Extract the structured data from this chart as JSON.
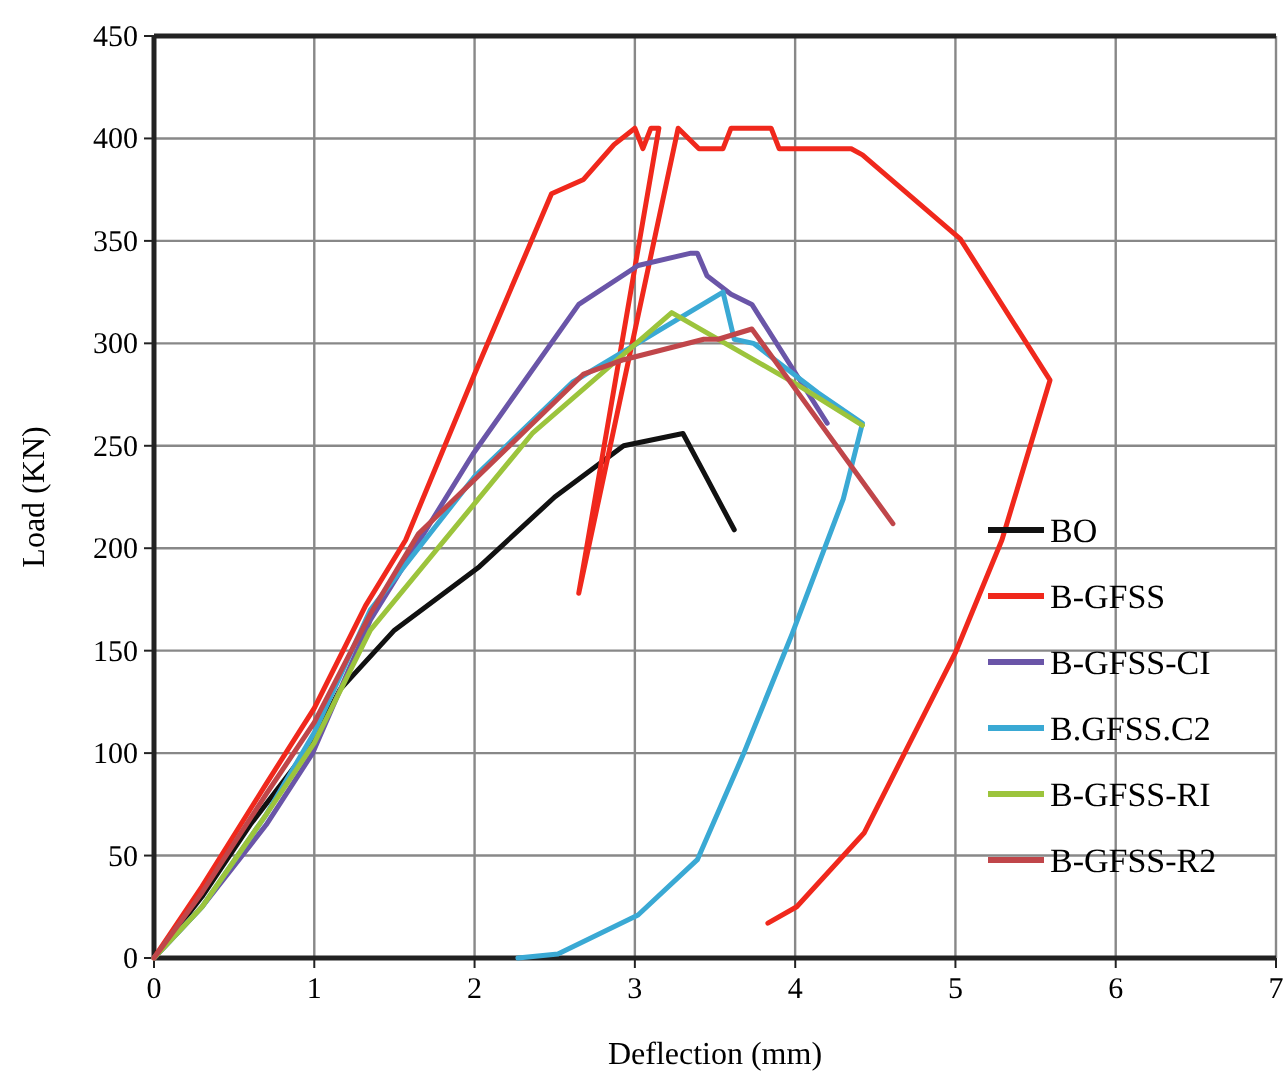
{
  "chart_data": {
    "type": "line",
    "xlabel": "Deflection (mm)",
    "ylabel": "Load (KN)",
    "xlim": [
      0,
      7
    ],
    "ylim": [
      0,
      450
    ],
    "xticks": [
      0,
      1,
      2,
      3,
      4,
      5,
      6,
      7
    ],
    "yticks": [
      0,
      50,
      100,
      150,
      200,
      250,
      300,
      350,
      400,
      450
    ],
    "grid": true,
    "legend": "right",
    "marker": "none",
    "line_style": "solid",
    "series": [
      {
        "name": "BO",
        "color": "#111111",
        "x": [
          0,
          0.3,
          0.6,
          0.99,
          1.16,
          1.5,
          2.03,
          2.5,
          2.93,
          3.3,
          3.43,
          3.62
        ],
        "values": [
          0,
          30,
          65,
          105,
          131,
          160,
          191,
          225,
          250,
          256,
          237,
          209
        ]
      },
      {
        "name": "B-GFSS",
        "color": "#f0281c",
        "x": [
          0,
          0.3,
          0.7,
          1.0,
          1.32,
          1.57,
          2.0,
          2.48,
          2.68,
          2.87,
          3.0,
          3.05,
          3.1,
          3.15,
          2.65,
          3.27,
          3.4,
          3.55,
          3.6,
          3.85,
          3.9,
          4.35,
          4.42,
          5.03,
          5.59,
          5.29,
          5.0,
          4.43,
          4.01,
          3.83
        ],
        "values": [
          0,
          35,
          85,
          122,
          172,
          204,
          285,
          373,
          380,
          397,
          405,
          395,
          405,
          405,
          178,
          405,
          395,
          395,
          405,
          405,
          395,
          395,
          392,
          351,
          282,
          204,
          149,
          61,
          25,
          17
        ]
      },
      {
        "name": "B-GFSS-CI",
        "color": "#6a55a8",
        "x": [
          0,
          0.3,
          0.7,
          0.99,
          1.35,
          1.99,
          2.65,
          3.02,
          3.35,
          3.39,
          3.45,
          3.6,
          3.73,
          4.2
        ],
        "values": [
          0,
          25,
          65,
          100,
          165,
          246,
          319,
          338,
          344,
          344,
          333,
          324,
          319,
          261
        ]
      },
      {
        "name": "B.GFSS.C2",
        "color": "#3aa9d4",
        "x": [
          0,
          0.3,
          0.7,
          1.0,
          1.35,
          2.0,
          2.61,
          3.55,
          3.62,
          3.74,
          4.14,
          4.42,
          4.3,
          3.98,
          3.68,
          3.39,
          3.02,
          2.52,
          2.27
        ],
        "values": [
          0,
          25,
          70,
          110,
          170,
          235,
          281,
          325,
          302,
          300,
          276,
          261,
          224,
          158,
          100,
          48,
          21,
          2,
          0
        ]
      },
      {
        "name": "B-GFSS-RI",
        "color": "#9cc43c",
        "x": [
          0,
          0.3,
          0.7,
          1.0,
          1.35,
          2.36,
          3.23,
          4.01,
          4.42
        ],
        "values": [
          0,
          25,
          70,
          105,
          160,
          256,
          315,
          280,
          260
        ]
      },
      {
        "name": "B-GFSS-R2",
        "color": "#c0464a",
        "x": [
          0,
          0.3,
          0.7,
          1.0,
          1.35,
          1.65,
          2.68,
          2.93,
          3.43,
          3.52,
          3.73,
          4.61
        ],
        "values": [
          0,
          32,
          80,
          115,
          168,
          207,
          285,
          292,
          302,
          302,
          307,
          212
        ]
      }
    ]
  }
}
